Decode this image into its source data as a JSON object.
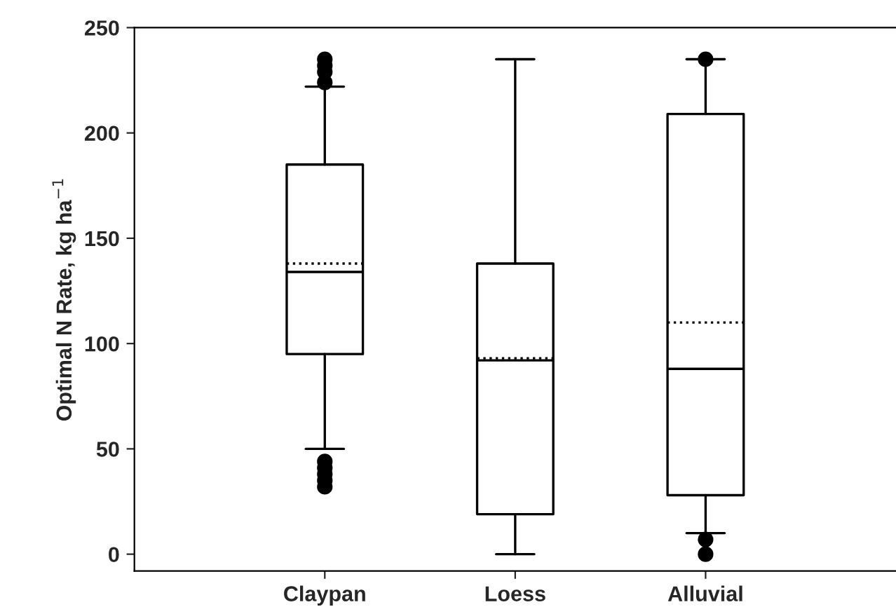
{
  "chart_data": {
    "type": "box",
    "ylabel": "Optimal N Rate, kg ha$^{−1}$",
    "categories": [
      "Claypan",
      "Loess",
      "Alluvial"
    ],
    "boxes": [
      {
        "low": 50,
        "q1": 95,
        "median": 134,
        "q3": 185,
        "high": 222,
        "mean": 138,
        "outliers": [
          235,
          232,
          229,
          224,
          44,
          41,
          38,
          35,
          32
        ]
      },
      {
        "low": 0,
        "q1": 19,
        "median": 92,
        "q3": 138,
        "high": 235,
        "mean": 93
      },
      {
        "low": 10,
        "q1": 28,
        "median": 88,
        "q3": 209,
        "high": 235,
        "mean": 110,
        "outliers": [
          235,
          7,
          0
        ]
      }
    ],
    "ylim": [
      -8,
      250
    ],
    "yticks": [
      0,
      50,
      100,
      150,
      200,
      250
    ],
    "grid": false
  }
}
